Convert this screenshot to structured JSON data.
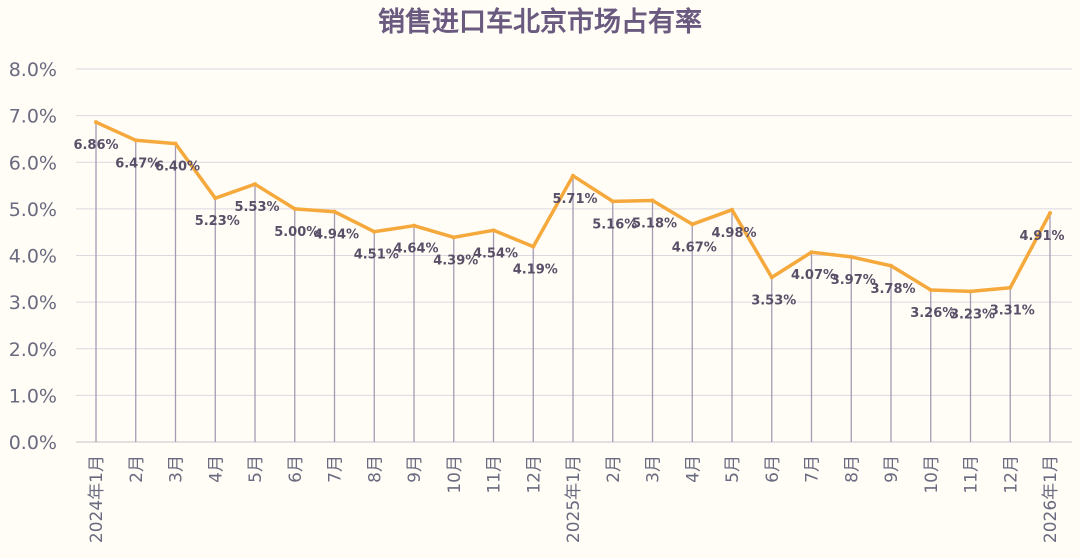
{
  "chart_data": {
    "type": "line",
    "title": "销售进口车北京市场占有率",
    "xlabel": "",
    "ylabel": "",
    "ylim": [
      0,
      8
    ],
    "yticks": [
      "0.0%",
      "1.0%",
      "2.0%",
      "3.0%",
      "4.0%",
      "5.0%",
      "6.0%",
      "7.0%",
      "8.0%"
    ],
    "categories": [
      "2024年1月",
      "2月",
      "3月",
      "4月",
      "5月",
      "6月",
      "7月",
      "8月",
      "9月",
      "10月",
      "11月",
      "12月",
      "2025年1月",
      "2月",
      "3月",
      "4月",
      "5月",
      "6月",
      "7月",
      "8月",
      "9月",
      "10月",
      "11月",
      "12月",
      "2026年1月"
    ],
    "series": [
      {
        "values": [
          6.86,
          6.47,
          6.4,
          5.23,
          5.53,
          5.0,
          4.94,
          4.51,
          4.64,
          4.39,
          4.54,
          4.19,
          5.71,
          5.16,
          5.18,
          4.67,
          4.98,
          3.53,
          4.07,
          3.97,
          3.78,
          3.26,
          3.23,
          3.31,
          4.91
        ],
        "labels": [
          "6.86%",
          "6.47%",
          "6.40%",
          "5.23%",
          "5.53%",
          "5.00%",
          "4.94%",
          "4.51%",
          "4.64%",
          "4.39%",
          "4.54%",
          "4.19%",
          "5.71%",
          "5.16%",
          "5.18%",
          "4.67%",
          "4.98%",
          "3.53%",
          "4.07%",
          "3.97%",
          "3.78%",
          "3.26%",
          "3.23%",
          "3.31%",
          "4.91%"
        ]
      }
    ],
    "grid": true,
    "drop_lines": true,
    "line_color": "#f5a93c",
    "grid_color": "#dcd8e2",
    "drop_line_color": "#a39bb5",
    "title_color": "#6b5a80"
  }
}
